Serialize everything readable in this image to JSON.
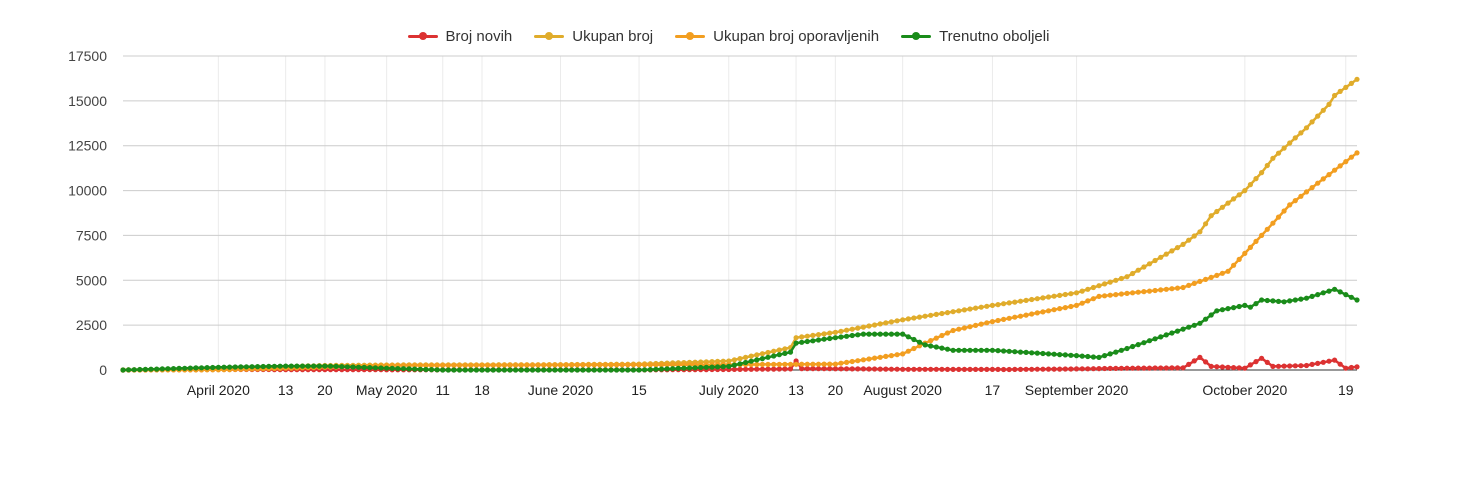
{
  "chart_data": {
    "type": "line",
    "title": "",
    "xlabel": "",
    "ylabel": "",
    "ylim": [
      0,
      17500
    ],
    "y_ticks": [
      "0",
      "2500",
      "5000",
      "7500",
      "10000",
      "12500",
      "15000",
      "17500"
    ],
    "x_start": "2020-03-15",
    "x_end": "2020-10-21",
    "x_ticks": [
      {
        "date": "2020-04-01",
        "label": "April 2020"
      },
      {
        "date": "2020-04-13",
        "label": "13"
      },
      {
        "date": "2020-04-20",
        "label": "20"
      },
      {
        "date": "2020-05-01",
        "label": "May 2020"
      },
      {
        "date": "2020-05-11",
        "label": "11"
      },
      {
        "date": "2020-05-18",
        "label": "18"
      },
      {
        "date": "2020-06-01",
        "label": "June 2020"
      },
      {
        "date": "2020-06-15",
        "label": "15"
      },
      {
        "date": "2020-07-01",
        "label": "July 2020"
      },
      {
        "date": "2020-07-13",
        "label": "13"
      },
      {
        "date": "2020-07-20",
        "label": "20"
      },
      {
        "date": "2020-08-01",
        "label": "August 2020"
      },
      {
        "date": "2020-08-17",
        "label": "17"
      },
      {
        "date": "2020-09-01",
        "label": "September 2020"
      },
      {
        "date": "2020-10-01",
        "label": "October 2020"
      },
      {
        "date": "2020-10-19",
        "label": "19"
      }
    ],
    "grid": true,
    "legend_position": "top",
    "series": [
      {
        "name": "Broj novih",
        "color": "#dc3232",
        "points": [
          [
            "2020-03-15",
            0
          ],
          [
            "2020-04-01",
            30
          ],
          [
            "2020-04-20",
            20
          ],
          [
            "2020-05-15",
            5
          ],
          [
            "2020-06-15",
            5
          ],
          [
            "2020-07-01",
            30
          ],
          [
            "2020-07-12",
            60
          ],
          [
            "2020-07-13",
            500
          ],
          [
            "2020-07-14",
            80
          ],
          [
            "2020-07-25",
            60
          ],
          [
            "2020-08-01",
            40
          ],
          [
            "2020-08-20",
            30
          ],
          [
            "2020-09-01",
            60
          ],
          [
            "2020-09-10",
            100
          ],
          [
            "2020-09-20",
            120
          ],
          [
            "2020-09-23",
            700
          ],
          [
            "2020-09-25",
            200
          ],
          [
            "2020-10-01",
            100
          ],
          [
            "2020-10-04",
            650
          ],
          [
            "2020-10-06",
            200
          ],
          [
            "2020-10-12",
            250
          ],
          [
            "2020-10-17",
            550
          ],
          [
            "2020-10-19",
            100
          ],
          [
            "2020-10-21",
            180
          ]
        ]
      },
      {
        "name": "Ukupan broj",
        "color": "#e0ac2b",
        "points": [
          [
            "2020-03-15",
            0
          ],
          [
            "2020-04-01",
            100
          ],
          [
            "2020-04-13",
            200
          ],
          [
            "2020-04-20",
            250
          ],
          [
            "2020-05-01",
            280
          ],
          [
            "2020-06-01",
            300
          ],
          [
            "2020-06-15",
            330
          ],
          [
            "2020-07-01",
            500
          ],
          [
            "2020-07-12",
            1250
          ],
          [
            "2020-07-13",
            1800
          ],
          [
            "2020-07-20",
            2100
          ],
          [
            "2020-08-01",
            2800
          ],
          [
            "2020-08-17",
            3600
          ],
          [
            "2020-09-01",
            4300
          ],
          [
            "2020-09-10",
            5200
          ],
          [
            "2020-09-20",
            7000
          ],
          [
            "2020-09-23",
            7700
          ],
          [
            "2020-09-25",
            8600
          ],
          [
            "2020-10-01",
            10000
          ],
          [
            "2020-10-04",
            11000
          ],
          [
            "2020-10-06",
            11800
          ],
          [
            "2020-10-12",
            13500
          ],
          [
            "2020-10-16",
            14800
          ],
          [
            "2020-10-17",
            15300
          ],
          [
            "2020-10-21",
            16200
          ]
        ]
      },
      {
        "name": "Ukupan broj oporavljenih",
        "color": "#f29e20",
        "points": [
          [
            "2020-03-15",
            0
          ],
          [
            "2020-04-01",
            10
          ],
          [
            "2020-04-20",
            150
          ],
          [
            "2020-05-01",
            250
          ],
          [
            "2020-06-01",
            280
          ],
          [
            "2020-07-01",
            300
          ],
          [
            "2020-07-20",
            330
          ],
          [
            "2020-08-01",
            900
          ],
          [
            "2020-08-05",
            1500
          ],
          [
            "2020-08-10",
            2200
          ],
          [
            "2020-08-17",
            2700
          ],
          [
            "2020-09-01",
            3600
          ],
          [
            "2020-09-05",
            4100
          ],
          [
            "2020-09-20",
            4600
          ],
          [
            "2020-09-28",
            5500
          ],
          [
            "2020-10-04",
            7500
          ],
          [
            "2020-10-09",
            9200
          ],
          [
            "2020-10-21",
            12100
          ]
        ]
      },
      {
        "name": "Trenutno oboljeli",
        "color": "#1a8c1a",
        "points": [
          [
            "2020-03-15",
            0
          ],
          [
            "2020-04-01",
            150
          ],
          [
            "2020-04-13",
            220
          ],
          [
            "2020-04-20",
            220
          ],
          [
            "2020-05-01",
            100
          ],
          [
            "2020-05-11",
            0
          ],
          [
            "2020-06-15",
            0
          ],
          [
            "2020-07-01",
            200
          ],
          [
            "2020-07-12",
            1000
          ],
          [
            "2020-07-13",
            1500
          ],
          [
            "2020-07-20",
            1800
          ],
          [
            "2020-07-25",
            2000
          ],
          [
            "2020-08-01",
            2000
          ],
          [
            "2020-08-05",
            1400
          ],
          [
            "2020-08-10",
            1100
          ],
          [
            "2020-08-17",
            1100
          ],
          [
            "2020-09-01",
            800
          ],
          [
            "2020-09-05",
            700
          ],
          [
            "2020-09-10",
            1200
          ],
          [
            "2020-09-23",
            2600
          ],
          [
            "2020-09-26",
            3300
          ],
          [
            "2020-10-01",
            3600
          ],
          [
            "2020-10-02",
            3500
          ],
          [
            "2020-10-04",
            3900
          ],
          [
            "2020-10-08",
            3800
          ],
          [
            "2020-10-12",
            4000
          ],
          [
            "2020-10-17",
            4500
          ],
          [
            "2020-10-19",
            4200
          ],
          [
            "2020-10-21",
            3900
          ]
        ]
      }
    ]
  }
}
